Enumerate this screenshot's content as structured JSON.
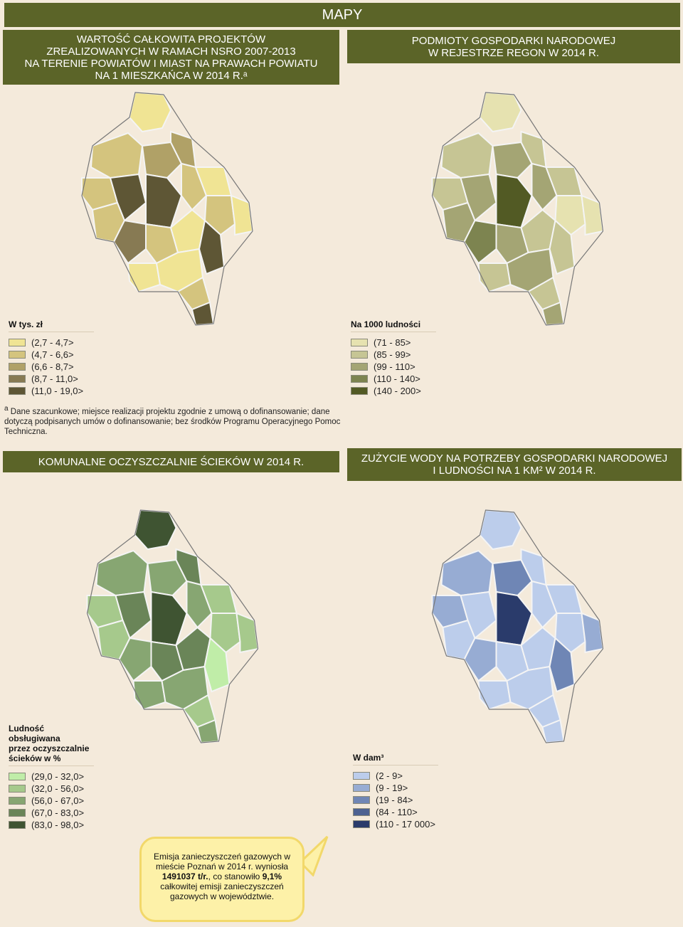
{
  "header": {
    "title": "MAPY"
  },
  "panels": [
    {
      "id": "nsro",
      "title_lines": [
        "WARTOŚĆ CAŁKOWITA PROJEKTÓW",
        "ZREALIZOWANYCH W RAMACH NSRO 2007-2013",
        "NA TERENIE POWIATÓW I MIAST NA PRAWACH POWIATU",
        "NA 1 MIESZKAŃCA W 2014 R.ᵃ"
      ],
      "legend_title": "W tys. zł",
      "legend": [
        {
          "label": "(2,7 - 4,7>",
          "color": "#f0e494"
        },
        {
          "label": "(4,7 - 6,6>",
          "color": "#d4c47e"
        },
        {
          "label": "(6,6 - 8,7>",
          "color": "#b0a167"
        },
        {
          "label": "(8,7 - 11,0>",
          "color": "#877a53"
        },
        {
          "label": "(11,0 - 19,0>",
          "color": "#5e5635"
        }
      ]
    },
    {
      "id": "regon",
      "title_lines": [
        "PODMIOTY GOSPODARKI NARODOWEJ",
        "W REJESTRZE REGON W 2014 R."
      ],
      "legend_title": "Na 1000 ludności",
      "legend": [
        {
          "label": "(71 - 85>",
          "color": "#e6e2b0"
        },
        {
          "label": "(85 - 99>",
          "color": "#c6c594"
        },
        {
          "label": "(99 - 110>",
          "color": "#a4a574"
        },
        {
          "label": "(110 - 140>",
          "color": "#7d8450"
        },
        {
          "label": "(140 - 200>",
          "color": "#525a24"
        }
      ]
    },
    {
      "id": "sewage",
      "title_lines": [
        "KOMUNALNE OCZYSZCZALNIE ŚCIEKÓW W 2014 R."
      ],
      "legend_title": "Ludność\nobsługiwana\nprzez oczyszczalnie\nścieków w %",
      "legend": [
        {
          "label": "(29,0 - 32,0>",
          "color": "#c0eda8"
        },
        {
          "label": "(32,0 - 56,0>",
          "color": "#a6c98c"
        },
        {
          "label": "(56,0 - 67,0>",
          "color": "#87a672"
        },
        {
          "label": "(67,0 - 83,0>",
          "color": "#6a8558"
        },
        {
          "label": "(83,0 - 98,0>",
          "color": "#3f5432"
        }
      ]
    },
    {
      "id": "water",
      "title_lines": [
        "ZUŻYCIE WODY NA POTRZEBY GOSPODARKI NARODOWEJ",
        "I LUDNOŚCI NA 1 KM² W 2014 R."
      ],
      "legend_title": "W dam³",
      "legend": [
        {
          "label": "(2 - 9>",
          "color": "#bccdeb"
        },
        {
          "label": "(9 - 19>",
          "color": "#97acd3"
        },
        {
          "label": "(19 - 84>",
          "color": "#6f86b5"
        },
        {
          "label": "(84 - 110>",
          "color": "#4d6291"
        },
        {
          "label": "(110 - 17 000>",
          "color": "#2a3b6b"
        }
      ]
    }
  ],
  "footnote": {
    "marker": "a",
    "text": "Dane szacunkowe; miejsce realizacji projektu zgodnie z umową o dofinansowanie; dane dotyczą podpisanych umów o dofinansowanie; bez środków Programu Operacyjnego Pomoc Techniczna."
  },
  "callout": {
    "text1": "Emisja zanieczyszczeń gazowych w mieście Poznań w 2014 r. wyniosła ",
    "value": "1491037 t/r.",
    "text2": ", co stanowiło ",
    "percent": "9,1%",
    "text3": " całkowitej emisji zanieczyszczeń gazowych w województwie."
  }
}
